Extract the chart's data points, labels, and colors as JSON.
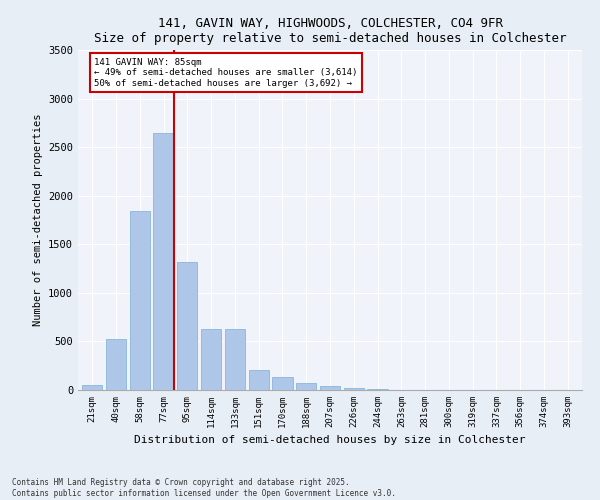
{
  "title1": "141, GAVIN WAY, HIGHWOODS, COLCHESTER, CO4 9FR",
  "title2": "Size of property relative to semi-detached houses in Colchester",
  "xlabel": "Distribution of semi-detached houses by size in Colchester",
  "ylabel": "Number of semi-detached properties",
  "categories": [
    "21sqm",
    "40sqm",
    "58sqm",
    "77sqm",
    "95sqm",
    "114sqm",
    "133sqm",
    "151sqm",
    "170sqm",
    "188sqm",
    "207sqm",
    "226sqm",
    "244sqm",
    "263sqm",
    "281sqm",
    "300sqm",
    "319sqm",
    "337sqm",
    "356sqm",
    "374sqm",
    "393sqm"
  ],
  "values": [
    55,
    520,
    1840,
    2650,
    1320,
    630,
    630,
    210,
    130,
    70,
    45,
    25,
    10,
    5,
    2,
    1,
    1,
    0,
    0,
    0,
    0
  ],
  "bar_color": "#aec6e8",
  "bar_edge_color": "#7bafd4",
  "vline_color": "#cc0000",
  "annotation_title": "141 GAVIN WAY: 85sqm",
  "annotation_line1": "← 49% of semi-detached houses are smaller (3,614)",
  "annotation_line2": "50% of semi-detached houses are larger (3,692) →",
  "annotation_box_color": "#ffffff",
  "annotation_edge_color": "#cc0000",
  "ylim": [
    0,
    3500
  ],
  "yticks": [
    0,
    500,
    1000,
    1500,
    2000,
    2500,
    3000,
    3500
  ],
  "footer1": "Contains HM Land Registry data © Crown copyright and database right 2025.",
  "footer2": "Contains public sector information licensed under the Open Government Licence v3.0.",
  "bg_color": "#e8eef5",
  "plot_bg_color": "#f0f4fa"
}
